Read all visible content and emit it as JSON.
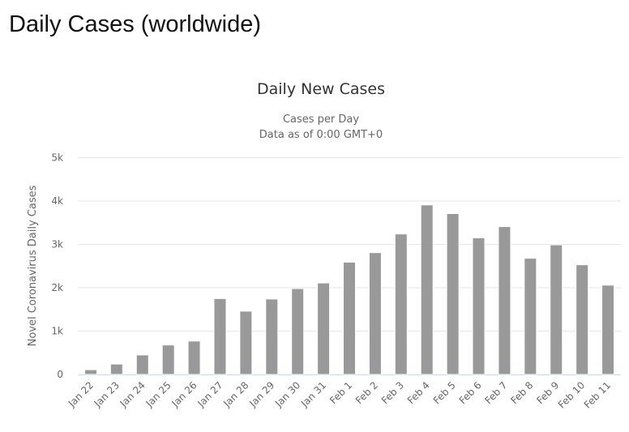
{
  "page_title": "Daily Cases (worldwide)",
  "chart_data": {
    "type": "bar",
    "title": "Daily New Cases",
    "subtitle_lines": [
      "Cases per Day",
      "Data as of 0:00 GMT+0"
    ],
    "xlabel": "",
    "ylabel": "Novel Coronavirus Daily Cases",
    "ylim": [
      0,
      5000
    ],
    "yticks": [
      0,
      1000,
      2000,
      3000,
      4000,
      5000
    ],
    "ytick_labels": [
      "0",
      "1k",
      "2k",
      "3k",
      "4k",
      "5k"
    ],
    "grid": true,
    "bar_color": "#999999",
    "categories": [
      "Jan 22",
      "Jan 23",
      "Jan 24",
      "Jan 25",
      "Jan 26",
      "Jan 27",
      "Jan 28",
      "Jan 29",
      "Jan 30",
      "Jan 31",
      "Feb 1",
      "Feb 2",
      "Feb 3",
      "Feb 4",
      "Feb 5",
      "Feb 6",
      "Feb 7",
      "Feb 8",
      "Feb 9",
      "Feb 10",
      "Feb 11"
    ],
    "values": [
      110,
      240,
      450,
      680,
      770,
      1750,
      1460,
      1740,
      1980,
      2110,
      2590,
      2810,
      3240,
      3910,
      3710,
      3150,
      3410,
      2680,
      2990,
      2530,
      2060
    ]
  }
}
